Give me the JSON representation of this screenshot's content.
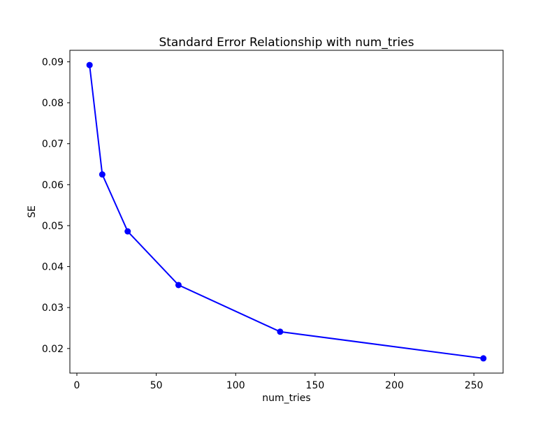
{
  "figure": {
    "background": "#ffffff",
    "spine_color": "#000000",
    "text_color": "#000000"
  },
  "chart_data": {
    "type": "line",
    "title": "Standard Error Relationship with num_tries",
    "xlabel": "num_tries",
    "ylabel": "SE",
    "x": [
      8,
      16,
      32,
      64,
      128,
      256
    ],
    "y": [
      0.0892,
      0.0625,
      0.0486,
      0.0355,
      0.0241,
      0.0176
    ],
    "series_color": "#0000ff",
    "marker": "o",
    "line_width": 2,
    "xticks": [
      0,
      50,
      100,
      150,
      200,
      250
    ],
    "yticks": [
      0.02,
      0.03,
      0.04,
      0.05,
      0.06,
      0.07,
      0.08,
      0.09
    ],
    "ytick_decimals": 2,
    "xlim": [
      -4.4,
      268.4
    ],
    "ylim": [
      0.014,
      0.0928
    ],
    "grid": false,
    "legend": null
  }
}
